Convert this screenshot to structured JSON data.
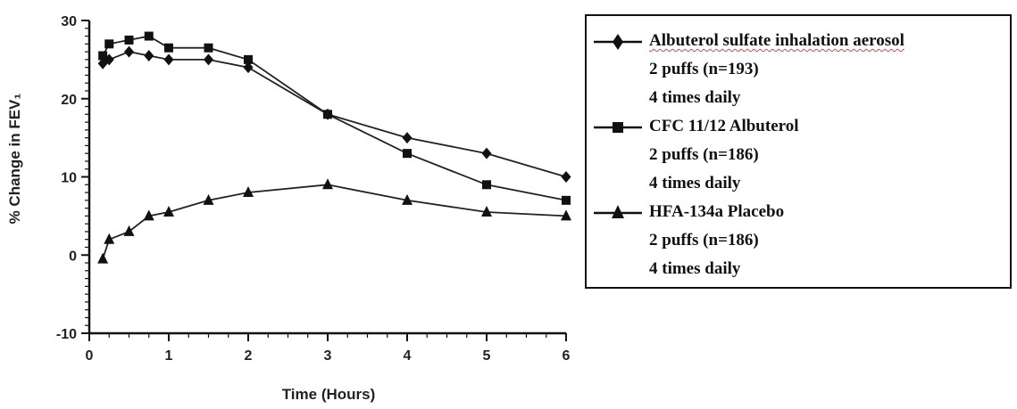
{
  "chart_data": {
    "type": "line",
    "xlabel": "Time (Hours)",
    "ylabel": "% Change in FEV₁",
    "xlim": [
      0,
      6
    ],
    "ylim": [
      -10,
      30
    ],
    "x_ticks": [
      "0",
      "1",
      "2",
      "3",
      "4",
      "5",
      "6"
    ],
    "y_ticks": [
      "-10",
      "0",
      "10",
      "20",
      "30"
    ],
    "grid": false,
    "legend_position": "right",
    "series": [
      {
        "name": "Albuterol sulfate inhalation aerosol",
        "legend_lines": [
          "Albuterol sulfate inhalation aerosol",
          "2 puffs (n=193)",
          "4 times daily"
        ],
        "marker": "diamond",
        "x": [
          0.17,
          0.25,
          0.5,
          0.75,
          1,
          1.5,
          2,
          3,
          4,
          5,
          6
        ],
        "y": [
          24.5,
          25,
          26,
          25.5,
          25,
          25,
          24,
          18,
          15,
          13,
          10
        ]
      },
      {
        "name": "CFC 11/12 Albuterol",
        "legend_lines": [
          "CFC 11/12 Albuterol",
          "2 puffs (n=186)",
          "4 times daily"
        ],
        "marker": "square",
        "x": [
          0.17,
          0.25,
          0.5,
          0.75,
          1,
          1.5,
          2,
          3,
          4,
          5,
          6
        ],
        "y": [
          25.5,
          27,
          27.5,
          28,
          26.5,
          26.5,
          25,
          18,
          13,
          9,
          7
        ]
      },
      {
        "name": "HFA-134a Placebo",
        "legend_lines": [
          "HFA-134a Placebo",
          "2 puffs (n=186)",
          "4 times daily"
        ],
        "marker": "triangle",
        "x": [
          0.17,
          0.25,
          0.5,
          0.75,
          1,
          1.5,
          2,
          3,
          4,
          5,
          6
        ],
        "y": [
          -0.5,
          2,
          3,
          5,
          5.5,
          7,
          8,
          9,
          7,
          5.5,
          5
        ]
      }
    ]
  }
}
